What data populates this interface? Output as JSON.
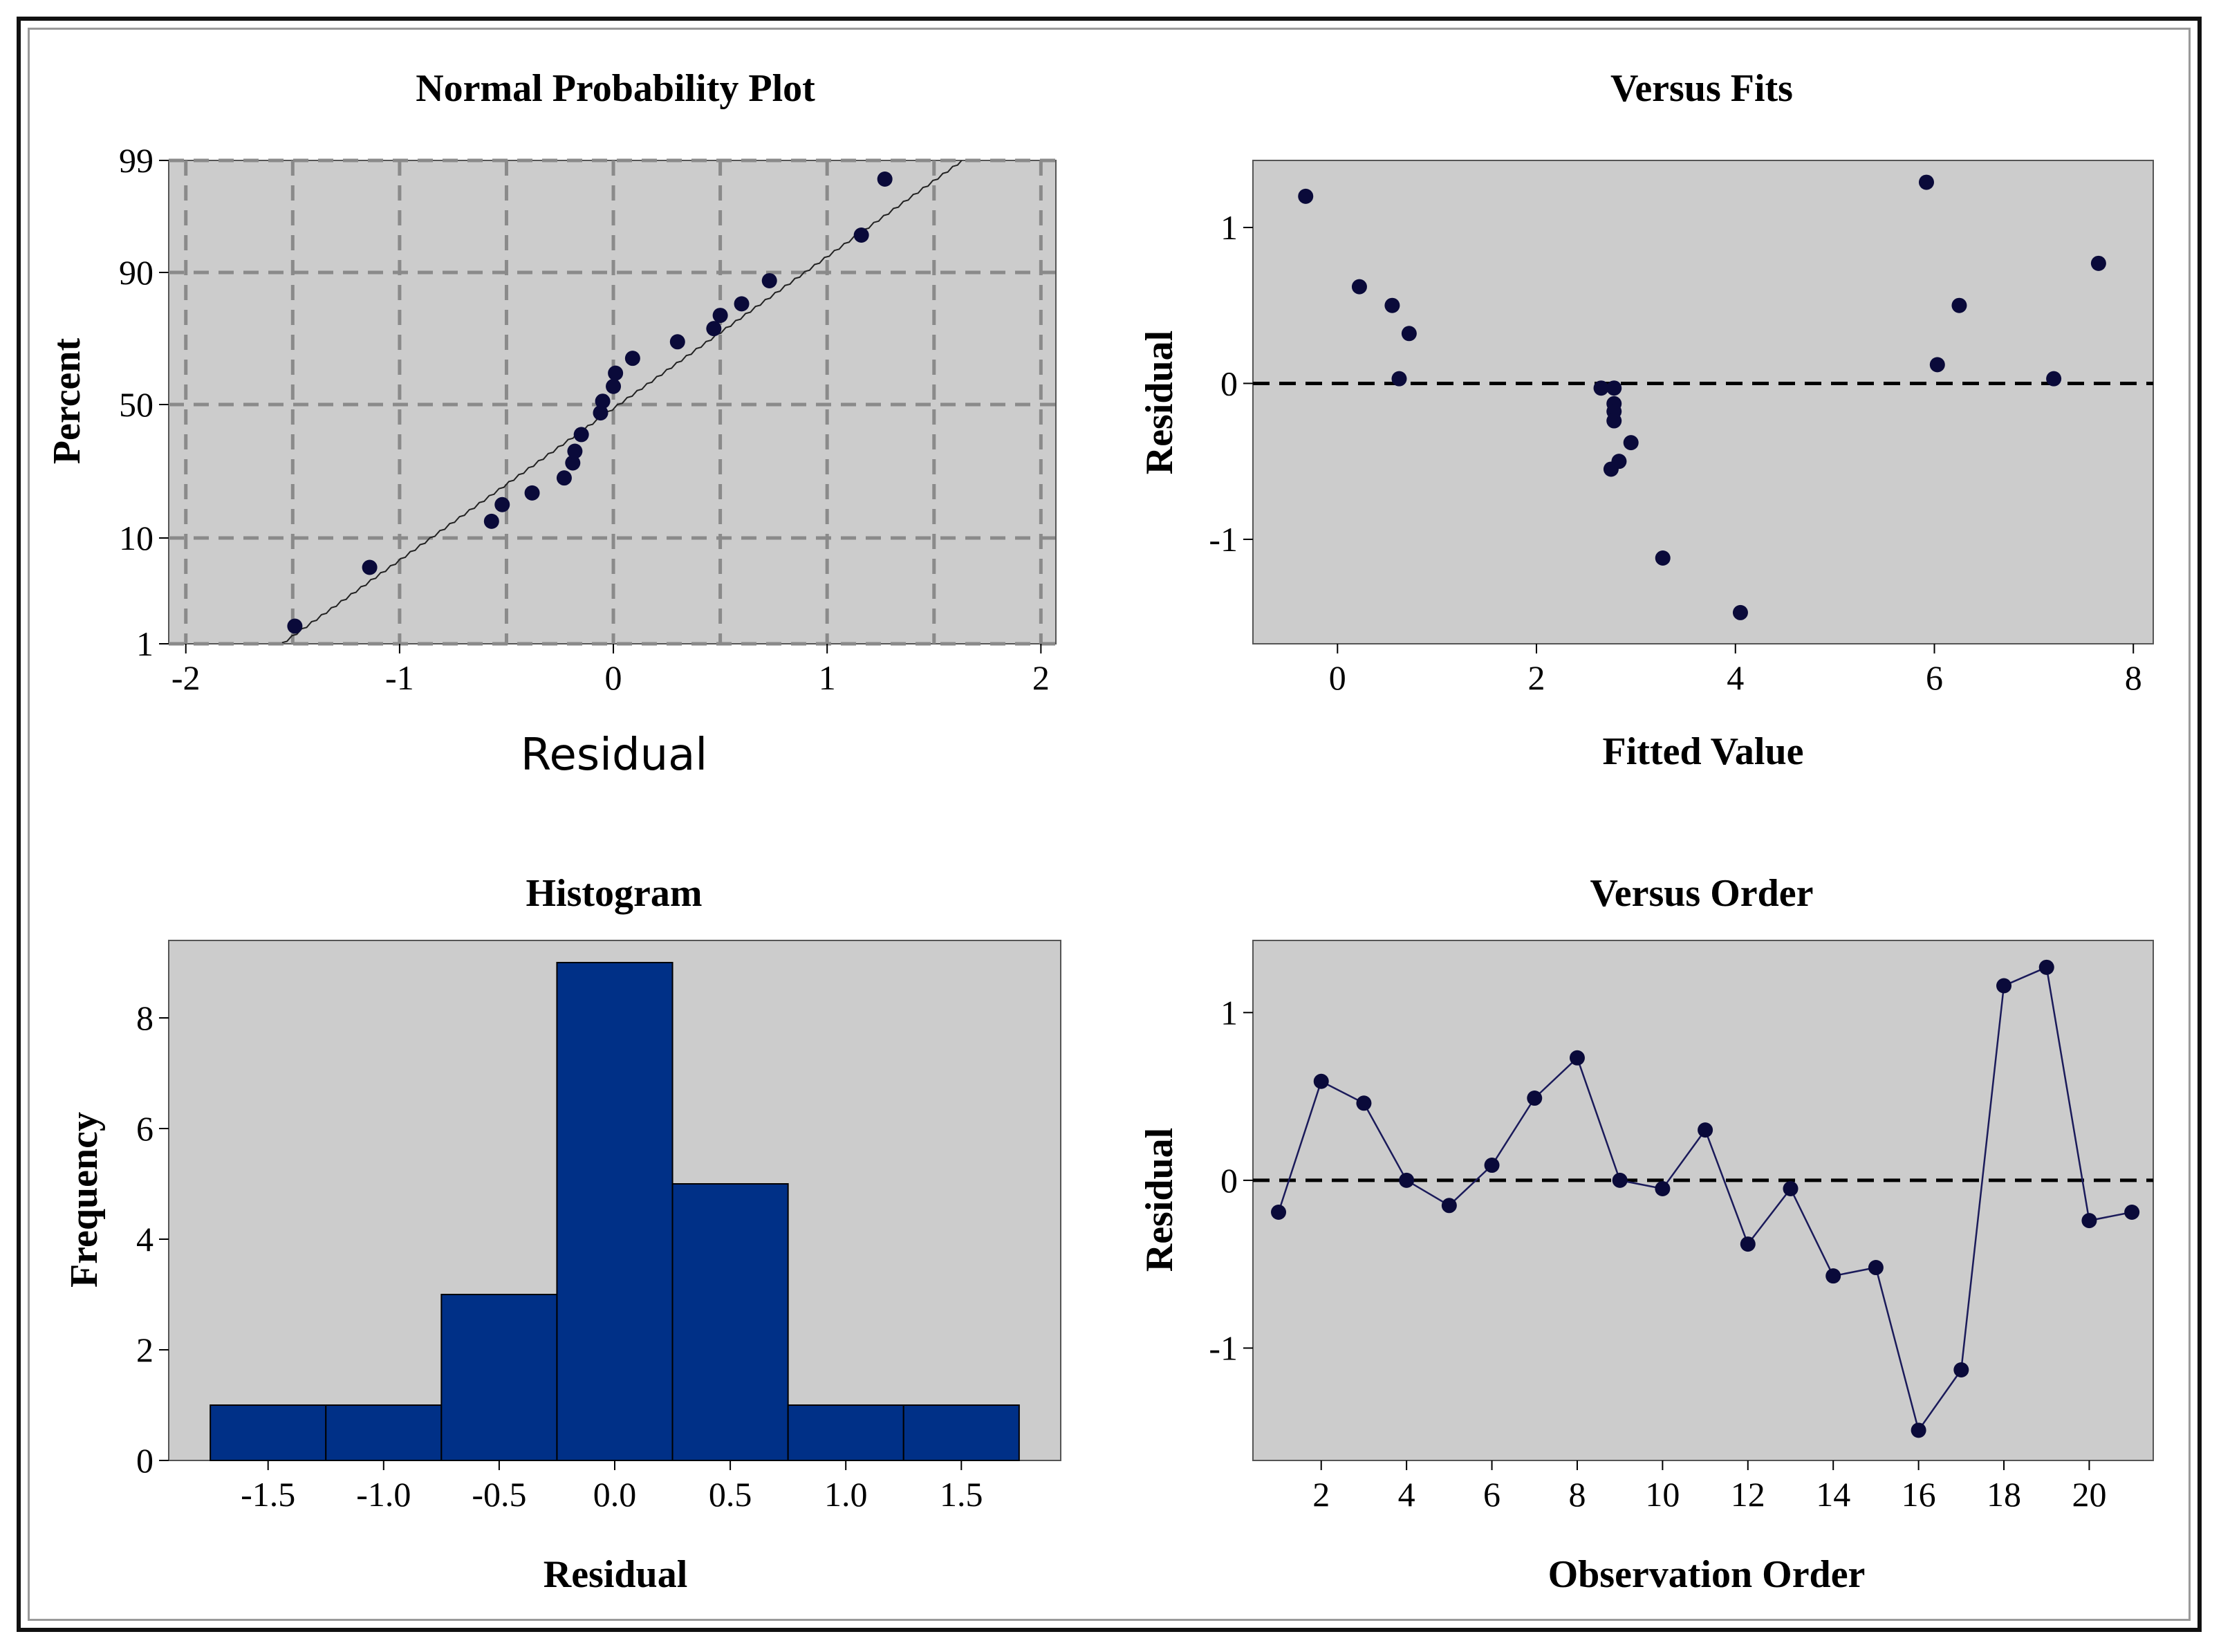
{
  "colors": {
    "plot_bg": "#cccccc",
    "point": "#0a0a3a",
    "bar": "#003087",
    "grid": "#8a8a8a",
    "zero_line": "#000000"
  },
  "chart_data": [
    {
      "type": "scatter",
      "title": "Normal Probability Plot",
      "xlabel": "Residual",
      "ylabel": "Percent",
      "xlim": [
        -2,
        2
      ],
      "xticks": [
        "-2",
        "-1",
        "0",
        "1",
        "2"
      ],
      "yticks": [
        "1",
        "10",
        "50",
        "90",
        "99"
      ],
      "ytick_values": [
        1,
        10,
        50,
        90,
        99
      ],
      "grid": true,
      "points": [
        {
          "x": -1.49,
          "y": 2.5
        },
        {
          "x": -1.14,
          "y": 7.5
        },
        {
          "x": -0.57,
          "y": 15.0
        },
        {
          "x": -0.52,
          "y": 20.0
        },
        {
          "x": -0.38,
          "y": 23.5
        },
        {
          "x": -0.23,
          "y": 28.0
        },
        {
          "x": -0.19,
          "y": 32.5
        },
        {
          "x": -0.18,
          "y": 36.0
        },
        {
          "x": -0.15,
          "y": 41.0
        },
        {
          "x": -0.06,
          "y": 47.5
        },
        {
          "x": -0.05,
          "y": 51.0
        },
        {
          "x": 0.0,
          "y": 55.5
        },
        {
          "x": 0.01,
          "y": 59.5
        },
        {
          "x": 0.09,
          "y": 64.0
        },
        {
          "x": 0.3,
          "y": 69.0
        },
        {
          "x": 0.47,
          "y": 73.0
        },
        {
          "x": 0.5,
          "y": 77.0
        },
        {
          "x": 0.6,
          "y": 80.5
        },
        {
          "x": 0.73,
          "y": 87.5
        },
        {
          "x": 1.16,
          "y": 93.0
        },
        {
          "x": 1.27,
          "y": 97.5
        }
      ],
      "fit_line": {
        "x": [
          -1.55,
          1.55
        ],
        "y": [
          1,
          99
        ]
      }
    },
    {
      "type": "scatter",
      "title": "Versus Fits",
      "xlabel": "Fitted Value",
      "ylabel": "Residual",
      "xlim": [
        -0.85,
        8.2
      ],
      "ylim": [
        -1.67,
        1.43
      ],
      "xticks": [
        "0",
        "2",
        "4",
        "6",
        "8"
      ],
      "yticks": [
        "-1",
        "0",
        "1"
      ],
      "reference_line": 0,
      "points": [
        {
          "x": -0.32,
          "y": 1.2
        },
        {
          "x": 0.22,
          "y": 0.62
        },
        {
          "x": 0.55,
          "y": 0.5
        },
        {
          "x": 0.62,
          "y": 0.03
        },
        {
          "x": 0.72,
          "y": 0.32
        },
        {
          "x": 2.65,
          "y": -0.03
        },
        {
          "x": 2.78,
          "y": -0.03
        },
        {
          "x": 2.78,
          "y": -0.13
        },
        {
          "x": 2.78,
          "y": -0.18
        },
        {
          "x": 2.78,
          "y": -0.24
        },
        {
          "x": 2.75,
          "y": -0.55
        },
        {
          "x": 2.83,
          "y": -0.5
        },
        {
          "x": 2.95,
          "y": -0.38
        },
        {
          "x": 3.27,
          "y": -1.12
        },
        {
          "x": 4.05,
          "y": -1.47
        },
        {
          "x": 5.92,
          "y": 1.29
        },
        {
          "x": 6.03,
          "y": 0.12
        },
        {
          "x": 6.25,
          "y": 0.5
        },
        {
          "x": 7.2,
          "y": 0.03
        },
        {
          "x": 7.65,
          "y": 0.77
        }
      ]
    },
    {
      "type": "bar",
      "title": "Histogram",
      "xlabel": "Residual",
      "ylabel": "Frequency",
      "xlim": [
        -1.93,
        1.93
      ],
      "ylim": [
        0,
        9.4
      ],
      "xticks": [
        "-1.5",
        "-1.0",
        "-0.5",
        "0.0",
        "0.5",
        "1.0",
        "1.5"
      ],
      "yticks": [
        "0",
        "2",
        "4",
        "6",
        "8"
      ],
      "bin_edges": [
        -1.75,
        -1.25,
        -0.75,
        -0.25,
        0.25,
        0.75,
        1.25,
        1.75
      ],
      "values": [
        1,
        1,
        3,
        9,
        5,
        1,
        1
      ]
    },
    {
      "type": "line",
      "title": "Versus Order",
      "xlabel": "Observation Order",
      "ylabel": "Residual",
      "xlim": [
        0.4,
        21.5
      ],
      "ylim": [
        -1.67,
        1.43
      ],
      "xticks": [
        "2",
        "4",
        "6",
        "8",
        "10",
        "12",
        "14",
        "16",
        "18",
        "20"
      ],
      "yticks": [
        "-1",
        "0",
        "1"
      ],
      "reference_line": 0,
      "x": [
        1,
        2,
        3,
        4,
        5,
        6,
        7,
        8,
        9,
        10,
        11,
        12,
        13,
        14,
        15,
        16,
        17,
        18,
        19,
        20,
        21
      ],
      "values": [
        -0.19,
        0.59,
        0.46,
        0.0,
        -0.15,
        0.09,
        0.49,
        0.73,
        0.0,
        -0.05,
        0.3,
        -0.38,
        -0.05,
        -0.57,
        -0.52,
        -1.49,
        -1.13,
        1.16,
        1.27,
        -0.24,
        -0.19
      ]
    }
  ]
}
